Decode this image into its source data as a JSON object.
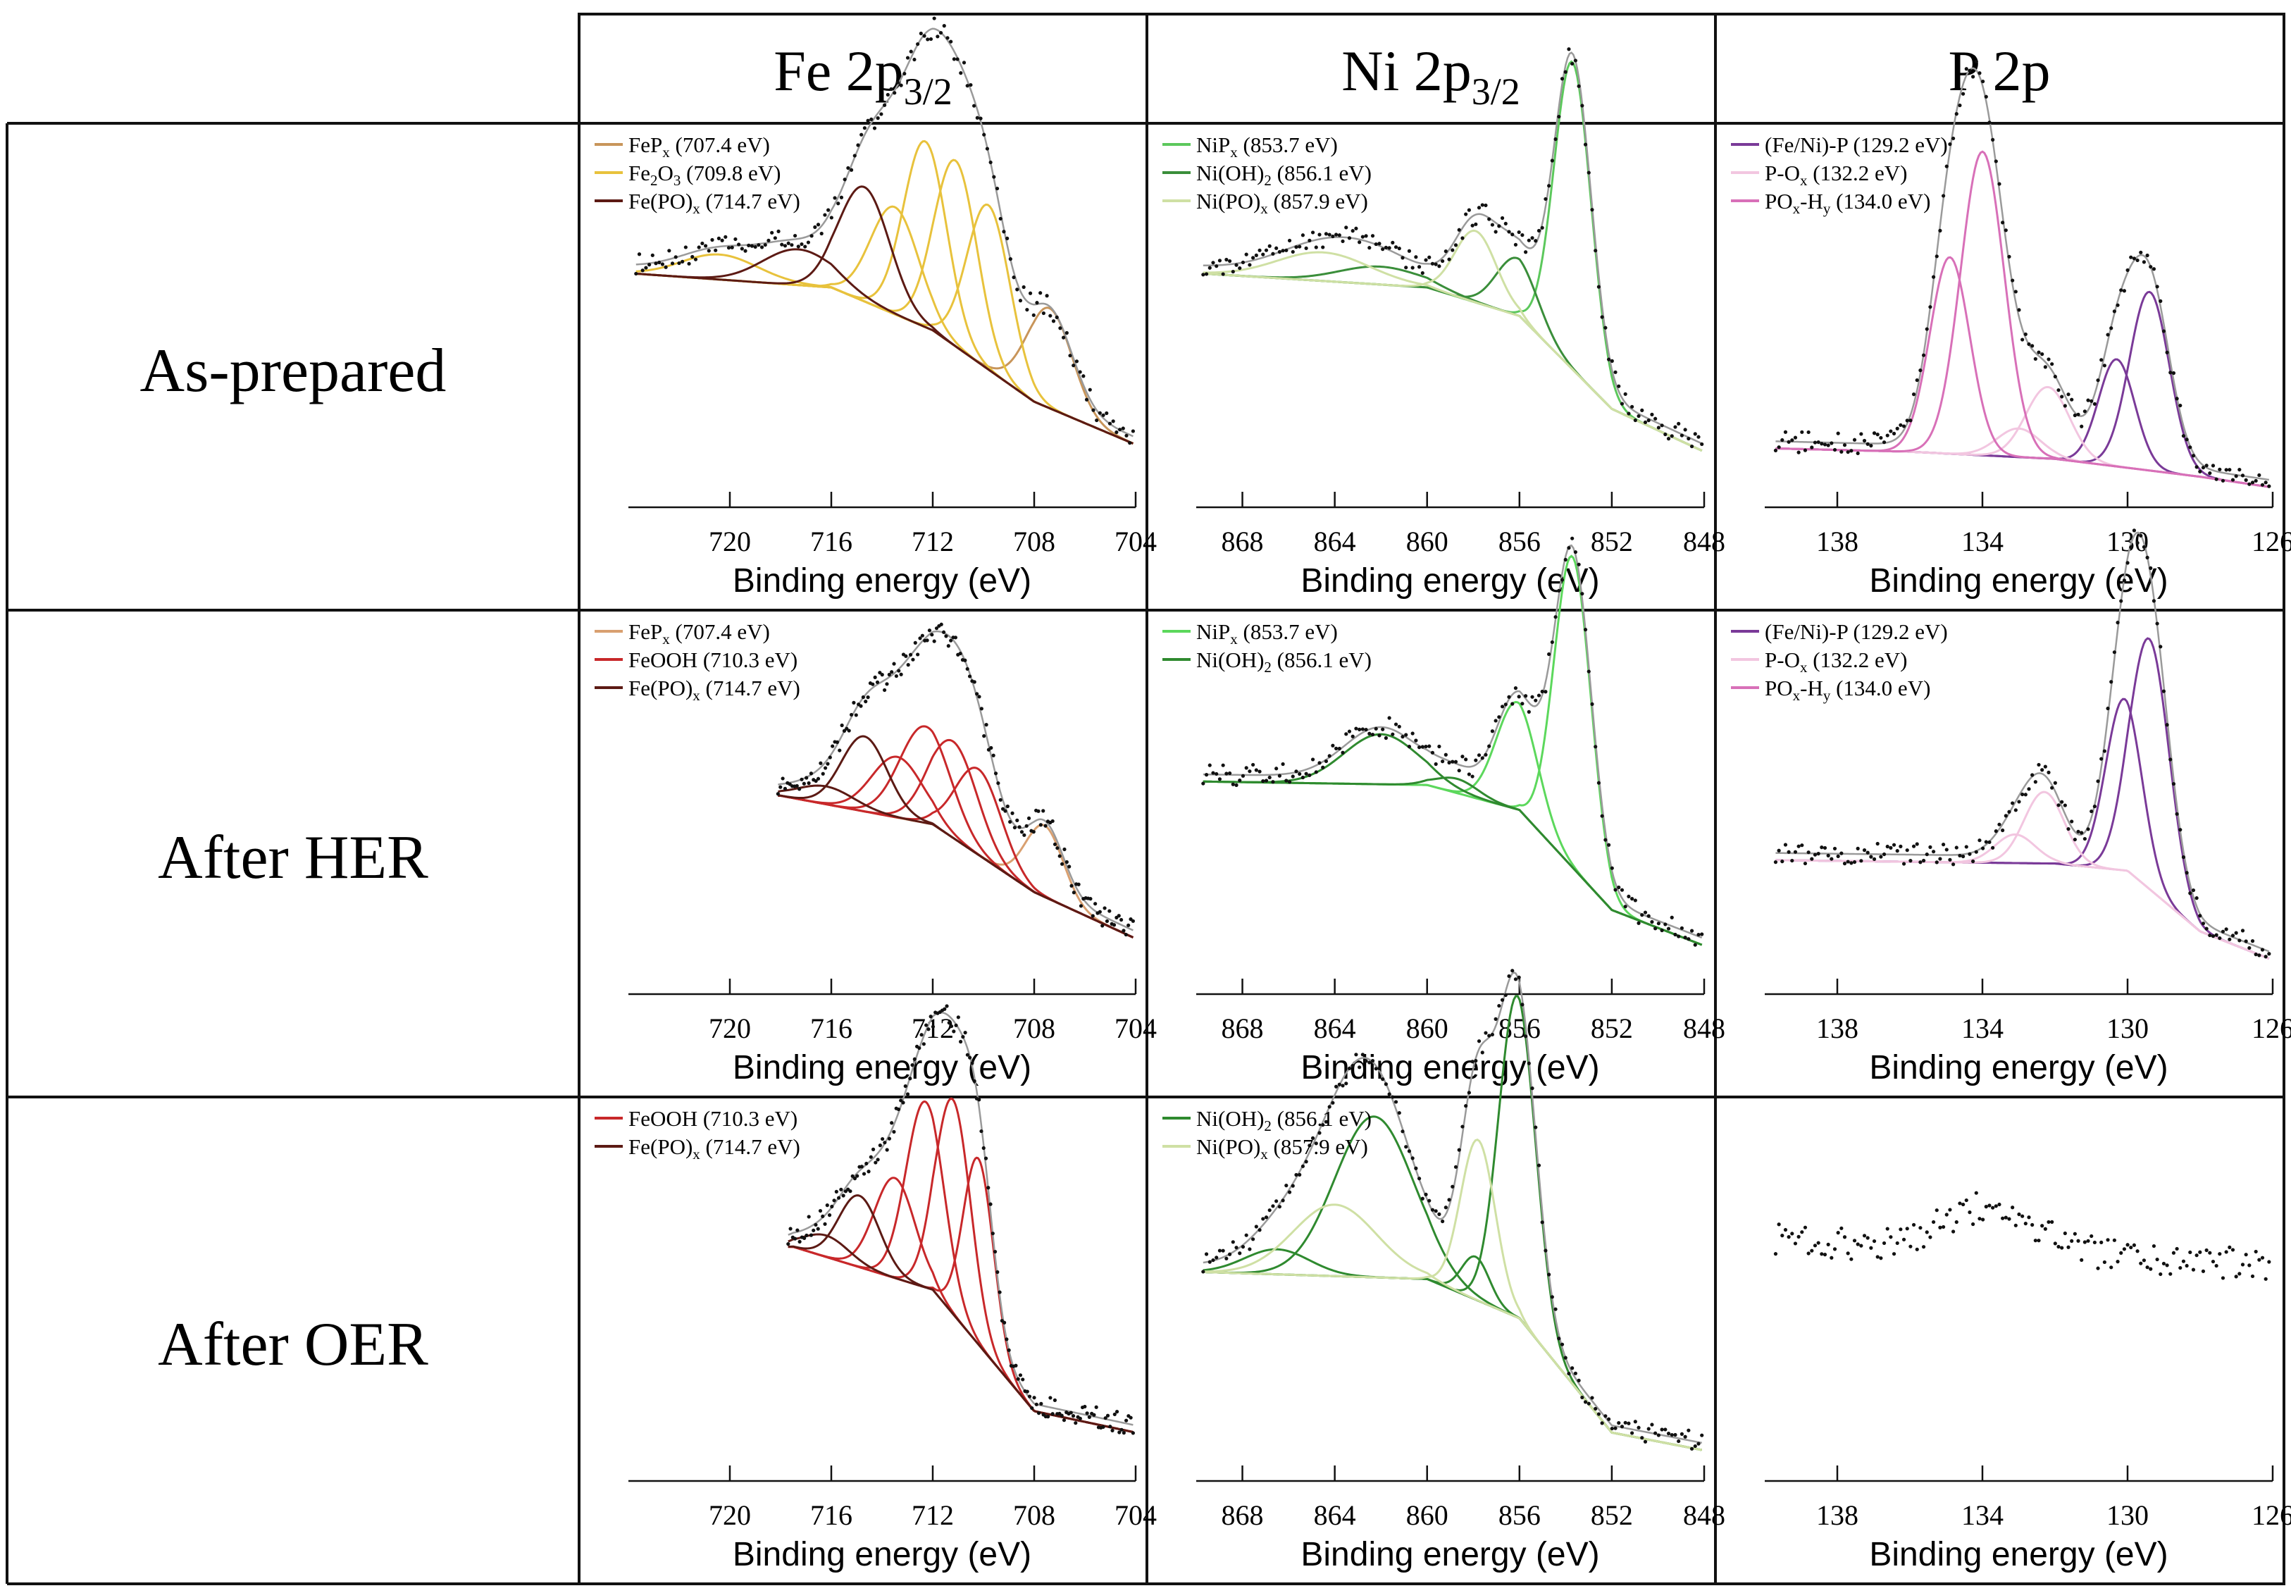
{
  "columns": [
    {
      "main": "Fe 2p",
      "sub": "3/2"
    },
    {
      "main": "Ni 2p",
      "sub": "3/2"
    },
    {
      "main": "P 2p",
      "sub": ""
    }
  ],
  "rows": [
    "As-prepared",
    "After HER",
    "After OER"
  ],
  "panels": [
    {
      "row": 0,
      "col": 0,
      "chart_data": {
        "type": "line",
        "xlabel": "Binding energy (eV)",
        "xlim": [
          724,
          704
        ],
        "xticks": [
          720,
          716,
          712,
          708,
          704
        ],
        "legend": [
          {
            "name": "FeP",
            "sub": "x",
            "value": " (707.4 eV)",
            "color": "#c8955a"
          },
          {
            "name": "Fe",
            "sub": "2",
            "name2": "O",
            "sub2": "3",
            "value": " (709.8 eV)",
            "color": "#e8c23c"
          },
          {
            "name": "Fe(PO)",
            "sub": "x",
            "value": " (714.7 eV)",
            "color": "#5c1a14"
          }
        ],
        "base": {
          "x": [
            724,
            716,
            712,
            708,
            704
          ],
          "y": [
            0.62,
            0.58,
            0.46,
            0.26,
            0.14
          ]
        },
        "peaks": [
          {
            "c": 707.4,
            "h": 0.28,
            "w": 0.9,
            "color": "#c8955a"
          },
          {
            "c": 709.8,
            "h": 0.46,
            "w": 0.85,
            "color": "#e8c23c"
          },
          {
            "c": 711.1,
            "h": 0.52,
            "w": 0.85,
            "color": "#e8c23c"
          },
          {
            "c": 712.3,
            "h": 0.52,
            "w": 0.85,
            "color": "#e8c23c"
          },
          {
            "c": 713.5,
            "h": 0.3,
            "w": 0.95,
            "color": "#e8c23c"
          },
          {
            "c": 720.4,
            "h": 0.07,
            "w": 1.5,
            "color": "#e8c23c"
          },
          {
            "c": 714.7,
            "h": 0.32,
            "w": 1.0,
            "color": "#5c1a14"
          },
          {
            "c": 717.3,
            "h": 0.1,
            "w": 1.4,
            "color": "#5c1a14"
          }
        ],
        "envelopeScale": 0.92,
        "points": true
      }
    },
    {
      "row": 0,
      "col": 1,
      "chart_data": {
        "type": "line",
        "xlabel": "Binding energy (eV)",
        "xlim": [
          870,
          848
        ],
        "xticks": [
          868,
          864,
          860,
          856,
          852,
          848
        ],
        "legend": [
          {
            "name": "NiP",
            "sub": "x",
            "value": " (853.7 eV)",
            "color": "#5cc85c"
          },
          {
            "name": "Ni(OH)",
            "sub": "2",
            "value": " (856.1 eV)",
            "color": "#3a8e3a"
          },
          {
            "name": "Ni(PO)",
            "sub": "x",
            "value": " (857.9 eV)",
            "color": "#cfe0a4"
          }
        ],
        "base": {
          "x": [
            870,
            860,
            856,
            852,
            848
          ],
          "y": [
            0.62,
            0.58,
            0.5,
            0.24,
            0.12
          ]
        },
        "peaks": [
          {
            "c": 853.7,
            "h": 0.86,
            "w": 0.8,
            "color": "#5cc85c"
          },
          {
            "c": 856.1,
            "h": 0.16,
            "w": 0.9,
            "color": "#3a8e3a"
          },
          {
            "c": 862.0,
            "h": 0.05,
            "w": 1.8,
            "color": "#3a8e3a"
          },
          {
            "c": 857.9,
            "h": 0.2,
            "w": 0.9,
            "color": "#cfe0a4"
          },
          {
            "c": 864.5,
            "h": 0.08,
            "w": 2.0,
            "color": "#cfe0a4"
          }
        ],
        "envelopeScale": 1.0,
        "points": true
      }
    },
    {
      "row": 0,
      "col": 2,
      "chart_data": {
        "type": "line",
        "xlabel": "Binding energy (eV)",
        "xlim": [
          140,
          126
        ],
        "xticks": [
          138,
          134,
          130,
          126
        ],
        "legend": [
          {
            "name": "(Fe/Ni)-P",
            "sub": "",
            "value": " (129.2 eV)",
            "color": "#7a3a98"
          },
          {
            "name": "P-O",
            "sub": "x",
            "value": " (132.2 eV)",
            "color": "#f2c6e0"
          },
          {
            "name": "PO",
            "sub": "x",
            "name2": "-H",
            "sub2": "y",
            "value": " (134.0 eV)",
            "color": "#d870b8"
          }
        ],
        "base": {
          "x": [
            140,
            136,
            132,
            128,
            126
          ],
          "y": [
            0.13,
            0.12,
            0.1,
            0.05,
            0.02
          ]
        },
        "peaks": [
          {
            "c": 129.4,
            "h": 0.5,
            "w": 0.55,
            "color": "#7a3a98"
          },
          {
            "c": 130.3,
            "h": 0.3,
            "w": 0.5,
            "color": "#7a3a98"
          },
          {
            "c": 132.2,
            "h": 0.2,
            "w": 0.6,
            "color": "#f2c6e0"
          },
          {
            "c": 133.0,
            "h": 0.08,
            "w": 0.6,
            "color": "#f2c6e0"
          },
          {
            "c": 134.0,
            "h": 0.85,
            "w": 0.6,
            "color": "#d870b8"
          },
          {
            "c": 134.9,
            "h": 0.55,
            "w": 0.55,
            "color": "#d870b8"
          }
        ],
        "envelopeScale": 1.0,
        "points": true
      }
    },
    {
      "row": 1,
      "col": 0,
      "chart_data": {
        "type": "line",
        "xlabel": "Binding energy (eV)",
        "xlim": [
          724,
          704
        ],
        "xticks": [
          720,
          716,
          712,
          708,
          704
        ],
        "legend": [
          {
            "name": "FeP",
            "sub": "x",
            "value": " (707.4 eV)",
            "color": "#d9a070"
          },
          {
            "name": "FeOOH",
            "sub": "",
            "value": " (710.3 eV)",
            "color": "#c8282a"
          },
          {
            "name": "Fe(PO)",
            "sub": "x",
            "value": " (714.7 eV)",
            "color": "#5c1a14"
          }
        ],
        "base": {
          "x": [
            718,
            712,
            708,
            704
          ],
          "y": [
            0.52,
            0.44,
            0.25,
            0.12
          ]
        },
        "peaks": [
          {
            "c": 707.6,
            "h": 0.2,
            "w": 0.75,
            "color": "#d9a070"
          },
          {
            "c": 710.2,
            "h": 0.24,
            "w": 0.9,
            "color": "#c8282a"
          },
          {
            "c": 711.2,
            "h": 0.27,
            "w": 0.95,
            "color": "#c8282a"
          },
          {
            "c": 712.3,
            "h": 0.27,
            "w": 1.0,
            "color": "#c8282a"
          },
          {
            "c": 713.4,
            "h": 0.17,
            "w": 1.0,
            "color": "#c8282a"
          },
          {
            "c": 714.7,
            "h": 0.21,
            "w": 0.9,
            "color": "#5c1a14"
          },
          {
            "c": 716.2,
            "h": 0.05,
            "w": 1.1,
            "color": "#5c1a14"
          }
        ],
        "xstart": 718.1,
        "envelopeScale": 0.95,
        "points": true
      }
    },
    {
      "row": 1,
      "col": 1,
      "chart_data": {
        "type": "line",
        "xlabel": "Binding energy (eV)",
        "xlim": [
          870,
          848
        ],
        "xticks": [
          868,
          864,
          860,
          856,
          852,
          848
        ],
        "legend": [
          {
            "name": "NiP",
            "sub": "x",
            "value": " (853.7 eV)",
            "color": "#5cd85c"
          },
          {
            "name": "Ni(OH)",
            "sub": "2",
            "value": " (856.1 eV)",
            "color": "#2f8a2f"
          }
        ],
        "base": {
          "x": [
            870,
            860,
            856,
            852,
            848
          ],
          "y": [
            0.56,
            0.55,
            0.48,
            0.2,
            0.1
          ]
        },
        "peaks": [
          {
            "c": 853.7,
            "h": 0.87,
            "w": 0.8,
            "color": "#5cd85c"
          },
          {
            "c": 856.1,
            "h": 0.3,
            "w": 0.9,
            "color": "#5cd85c"
          },
          {
            "c": 858.7,
            "h": 0.04,
            "w": 0.9,
            "color": "#2f8a2f"
          },
          {
            "c": 862.0,
            "h": 0.14,
            "w": 1.6,
            "color": "#2f8a2f"
          }
        ],
        "envelopeScale": 1.0,
        "points": true
      }
    },
    {
      "row": 1,
      "col": 2,
      "chart_data": {
        "type": "line",
        "xlabel": "Binding energy (eV)",
        "xlim": [
          140,
          126
        ],
        "xticks": [
          138,
          134,
          130,
          126
        ],
        "legend": [
          {
            "name": "(Fe/Ni)-P",
            "sub": "",
            "value": " (129.2 eV)",
            "color": "#7a3a98"
          },
          {
            "name": "P-O",
            "sub": "x",
            "value": " (132.2 eV)",
            "color": "#f2c6e0"
          },
          {
            "name": "PO",
            "sub": "x",
            "name2": "-H",
            "sub2": "y",
            "value": " (134.0 eV)",
            "color": "#d870b8"
          }
        ],
        "base": {
          "x": [
            140,
            132,
            130,
            128,
            126
          ],
          "y": [
            0.34,
            0.33,
            0.31,
            0.14,
            0.06
          ]
        },
        "peaks": [
          {
            "c": 129.4,
            "h": 0.7,
            "w": 0.55,
            "color": "#7a3a98"
          },
          {
            "c": 130.1,
            "h": 0.48,
            "w": 0.5,
            "color": "#7a3a98"
          },
          {
            "c": 132.3,
            "h": 0.2,
            "w": 0.55,
            "color": "#f2c6e0"
          },
          {
            "c": 133.1,
            "h": 0.08,
            "w": 0.55,
            "color": "#f2c6e0"
          }
        ],
        "envelopeScale": 1.0,
        "points": true
      }
    },
    {
      "row": 2,
      "col": 0,
      "chart_data": {
        "type": "line",
        "xlabel": "Binding energy (eV)",
        "xlim": [
          724,
          704
        ],
        "xticks": [
          720,
          716,
          712,
          708,
          704
        ],
        "legend": [
          {
            "name": "FeOOH",
            "sub": "",
            "value": " (710.3 eV)",
            "color": "#c8282a"
          },
          {
            "name": "Fe(PO)",
            "sub": "x",
            "value": " (714.7 eV)",
            "color": "#5c1a14"
          }
        ],
        "base": {
          "x": [
            717.5,
            712,
            708,
            704
          ],
          "y": [
            0.62,
            0.5,
            0.16,
            0.1
          ]
        },
        "peaks": [
          {
            "c": 710.2,
            "h": 0.52,
            "w": 0.6,
            "color": "#c8282a"
          },
          {
            "c": 711.2,
            "h": 0.6,
            "w": 0.7,
            "color": "#c8282a"
          },
          {
            "c": 712.3,
            "h": 0.52,
            "w": 0.75,
            "color": "#c8282a"
          },
          {
            "c": 713.5,
            "h": 0.28,
            "w": 0.8,
            "color": "#c8282a"
          },
          {
            "c": 714.9,
            "h": 0.2,
            "w": 0.8,
            "color": "#5c1a14"
          },
          {
            "c": 716.2,
            "h": 0.06,
            "w": 0.9,
            "color": "#5c1a14"
          }
        ],
        "xstart": 717.7,
        "envelopeScale": 0.88,
        "points": true
      }
    },
    {
      "row": 2,
      "col": 1,
      "chart_data": {
        "type": "line",
        "xlabel": "Binding energy (eV)",
        "xlim": [
          870,
          848
        ],
        "xticks": [
          868,
          864,
          860,
          856,
          852,
          848
        ],
        "legend": [
          {
            "name": "Ni(OH)",
            "sub": "2",
            "value": " (856.1 eV)",
            "color": "#2f8a2f"
          },
          {
            "name": "Ni(PO)",
            "sub": "x",
            "value": " (857.9 eV)",
            "color": "#cfe0a4"
          }
        ],
        "base": {
          "x": [
            870,
            860,
            856,
            852,
            848
          ],
          "y": [
            0.55,
            0.53,
            0.42,
            0.1,
            0.05
          ]
        },
        "peaks": [
          {
            "c": 856.1,
            "h": 0.9,
            "w": 0.8,
            "color": "#2f8a2f"
          },
          {
            "c": 857.9,
            "h": 0.12,
            "w": 0.6,
            "color": "#2f8a2f"
          },
          {
            "c": 862.3,
            "h": 0.45,
            "w": 1.7,
            "color": "#2f8a2f"
          },
          {
            "c": 866.5,
            "h": 0.07,
            "w": 1.4,
            "color": "#2f8a2f"
          },
          {
            "c": 857.8,
            "h": 0.45,
            "w": 0.75,
            "color": "#cfe0a4"
          },
          {
            "c": 864.0,
            "h": 0.2,
            "w": 1.8,
            "color": "#cfe0a4"
          }
        ],
        "envelopeScale": 1.0,
        "points": true
      }
    },
    {
      "row": 2,
      "col": 2,
      "chart_data": {
        "type": "scatter",
        "xlabel": "Binding energy (eV)",
        "xlim": [
          140,
          126
        ],
        "xticks": [
          138,
          134,
          130,
          126
        ],
        "legend": [],
        "base": {
          "x": [
            140,
            126
          ],
          "y": [
            0.62,
            0.55
          ]
        },
        "peaks": [
          {
            "c": 133.8,
            "h": 0.12,
            "w": 1.3,
            "color": "#000000"
          }
        ],
        "envelopeScale": 1.0,
        "points": true,
        "pointsOnly": true
      }
    }
  ]
}
